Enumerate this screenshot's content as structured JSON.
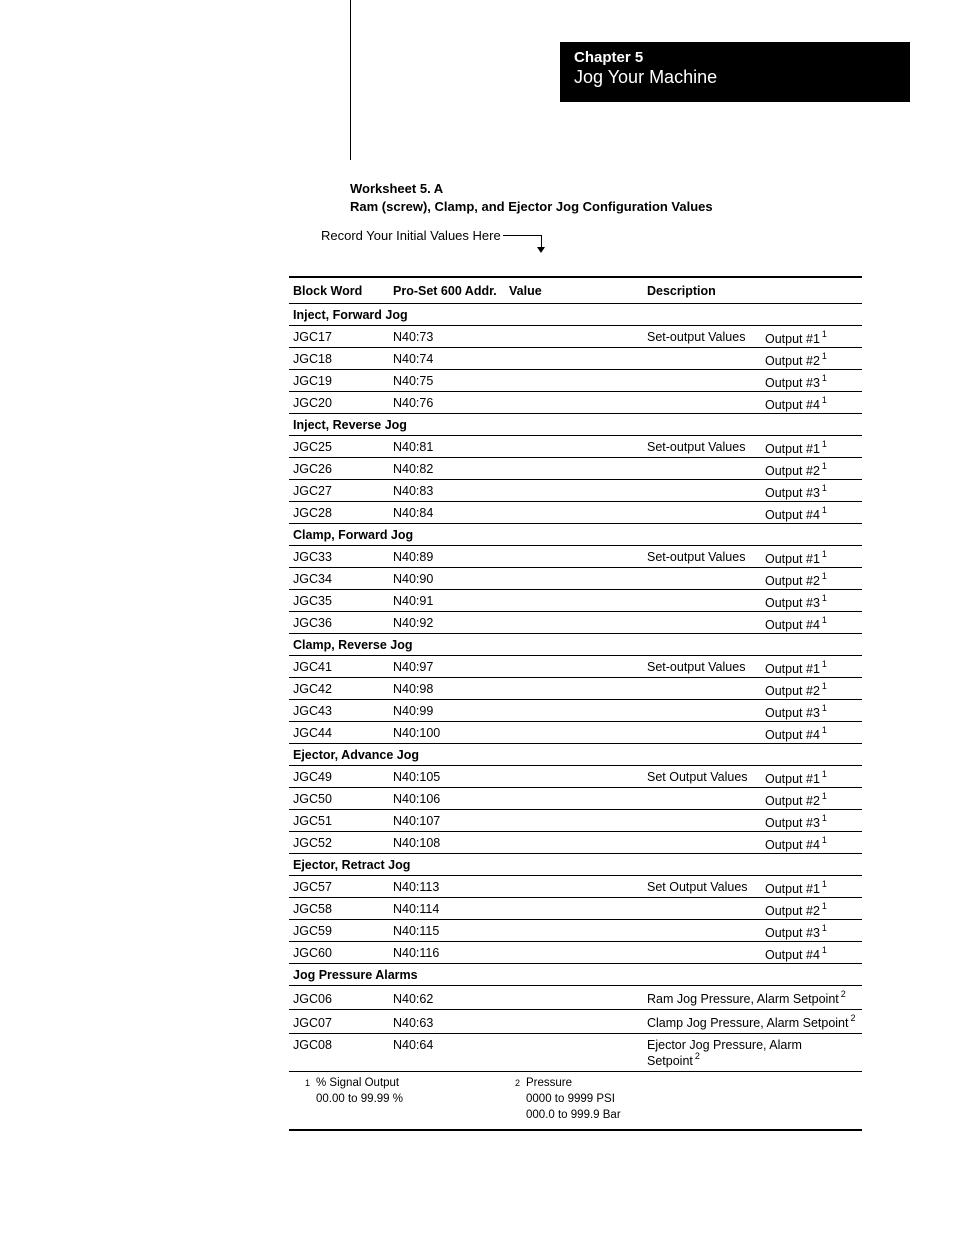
{
  "header": {
    "chapter": "Chapter 5",
    "subtitle": "Jog Your Machine"
  },
  "worksheet": {
    "label": "Worksheet 5. A",
    "title": "Ram (screw), Clamp, and Ejector Jog Configuration Values",
    "record_line": "Record Your Initial Values Here"
  },
  "columns": {
    "block_word": "Block Word",
    "addr": "Pro-Set 600 Addr.",
    "value": "Value",
    "desc": "Description"
  },
  "sections": [
    {
      "title": "Inject, Forward Jog",
      "rows": [
        {
          "bw": "JGC17",
          "addr": "N40:73",
          "prefix": "Set-output Values",
          "out": "Output #1",
          "sup": "1"
        },
        {
          "bw": "JGC18",
          "addr": "N40:74",
          "prefix": "",
          "out": "Output #2",
          "sup": "1"
        },
        {
          "bw": "JGC19",
          "addr": "N40:75",
          "prefix": "",
          "out": "Output #3",
          "sup": "1"
        },
        {
          "bw": "JGC20",
          "addr": "N40:76",
          "prefix": "",
          "out": "Output #4",
          "sup": "1"
        }
      ]
    },
    {
      "title": "Inject, Reverse Jog",
      "rows": [
        {
          "bw": "JGC25",
          "addr": "N40:81",
          "prefix": "Set-output Values",
          "out": "Output #1",
          "sup": "1"
        },
        {
          "bw": "JGC26",
          "addr": "N40:82",
          "prefix": "",
          "out": "Output #2",
          "sup": "1"
        },
        {
          "bw": "JGC27",
          "addr": "N40:83",
          "prefix": "",
          "out": "Output #3",
          "sup": "1"
        },
        {
          "bw": "JGC28",
          "addr": "N40:84",
          "prefix": "",
          "out": "Output #4",
          "sup": "1"
        }
      ]
    },
    {
      "title": "Clamp, Forward Jog",
      "rows": [
        {
          "bw": "JGC33",
          "addr": "N40:89",
          "prefix": "Set-output Values",
          "out": "Output #1",
          "sup": "1"
        },
        {
          "bw": "JGC34",
          "addr": "N40:90",
          "prefix": "",
          "out": "Output #2",
          "sup": "1"
        },
        {
          "bw": "JGC35",
          "addr": "N40:91",
          "prefix": "",
          "out": "Output #3",
          "sup": "1"
        },
        {
          "bw": "JGC36",
          "addr": "N40:92",
          "prefix": "",
          "out": "Output #4",
          "sup": "1"
        }
      ]
    },
    {
      "title": "Clamp, Reverse Jog",
      "rows": [
        {
          "bw": "JGC41",
          "addr": "N40:97",
          "prefix": "Set-output Values",
          "out": "Output #1",
          "sup": "1"
        },
        {
          "bw": "JGC42",
          "addr": "N40:98",
          "prefix": "",
          "out": "Output #2",
          "sup": "1"
        },
        {
          "bw": "JGC43",
          "addr": "N40:99",
          "prefix": "",
          "out": "Output #3",
          "sup": "1"
        },
        {
          "bw": "JGC44",
          "addr": "N40:100",
          "prefix": "",
          "out": "Output #4",
          "sup": "1"
        }
      ]
    },
    {
      "title": "Ejector, Advance Jog",
      "rows": [
        {
          "bw": "JGC49",
          "addr": "N40:105",
          "prefix": "Set Output Values",
          "out": "Output #1",
          "sup": "1"
        },
        {
          "bw": "JGC50",
          "addr": "N40:106",
          "prefix": "",
          "out": "Output #2",
          "sup": "1"
        },
        {
          "bw": "JGC51",
          "addr": "N40:107",
          "prefix": "",
          "out": "Output #3",
          "sup": "1"
        },
        {
          "bw": "JGC52",
          "addr": "N40:108",
          "prefix": "",
          "out": "Output #4",
          "sup": "1"
        }
      ]
    },
    {
      "title": "Ejector, Retract Jog",
      "rows": [
        {
          "bw": "JGC57",
          "addr": "N40:113",
          "prefix": "Set Output Values",
          "out": "Output #1",
          "sup": "1"
        },
        {
          "bw": "JGC58",
          "addr": "N40:114",
          "prefix": "",
          "out": "Output #2",
          "sup": "1"
        },
        {
          "bw": "JGC59",
          "addr": "N40:115",
          "prefix": "",
          "out": "Output #3",
          "sup": "1"
        },
        {
          "bw": "JGC60",
          "addr": "N40:116",
          "prefix": "",
          "out": "Output #4",
          "sup": "1"
        }
      ]
    },
    {
      "title": "Jog Pressure Alarms",
      "rows": [
        {
          "bw": "JGC06",
          "addr": "N40:62",
          "full": "Ram Jog Pressure, Alarm Setpoint",
          "sup": "2"
        },
        {
          "bw": "JGC07",
          "addr": "N40:63",
          "full": "Clamp Jog Pressure, Alarm Setpoint",
          "sup": "2"
        },
        {
          "bw": "JGC08",
          "addr": "N40:64",
          "full": "Ejector Jog Pressure, Alarm Setpoint",
          "sup": "2"
        }
      ]
    }
  ],
  "footnotes": {
    "n1": {
      "num": "1",
      "l1": "% Signal Output",
      "l2": "00.00 to 99.99 %"
    },
    "n2": {
      "num": "2",
      "l1": "Pressure",
      "l2": "0000 to 9999 PSI",
      "l3": "000.0 to 999.9 Bar"
    }
  }
}
